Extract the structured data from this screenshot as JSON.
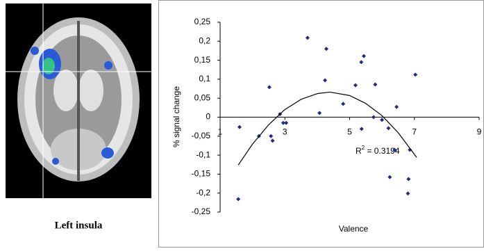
{
  "caption": "Left insula",
  "chart_data": {
    "type": "scatter",
    "x_label": "Valence",
    "y_label": "% signal change",
    "annotation": {
      "base": "R",
      "sup": "2",
      "text": " = 0.3194"
    },
    "xlim": [
      1,
      9
    ],
    "xticks": [
      1,
      3,
      5,
      7,
      9
    ],
    "ylim": [
      -0.25,
      0.25
    ],
    "yticks": [
      {
        "value": 0.25,
        "label": "0,25"
      },
      {
        "value": 0.2,
        "label": "0,2"
      },
      {
        "value": 0.15,
        "label": "0,15"
      },
      {
        "value": 0.1,
        "label": "0,1"
      },
      {
        "value": 0.05,
        "label": "0,05"
      },
      0,
      {
        "value": -0.05,
        "label": "-0,05"
      },
      {
        "value": -0.1,
        "label": "-0,1"
      },
      {
        "value": -0.15,
        "label": "-0,15"
      },
      {
        "value": -0.2,
        "label": "-0,2"
      },
      {
        "value": -0.25,
        "label": "-0,25"
      }
    ],
    "color": "#1f2a8c",
    "x": [
      1.6,
      1.56,
      2.2,
      2.57,
      2.52,
      2.62,
      2.95,
      2.85,
      3.04,
      3.7,
      4.07,
      4.28,
      4.24,
      4.8,
      5.18,
      5.36,
      5.44,
      5.37,
      5.79,
      5.74,
      6.0,
      6.2,
      6.39,
      6.24,
      6.45,
      6.8,
      6.82,
      6.86,
      7.03
    ],
    "values": [
      -0.026,
      -0.216,
      -0.05,
      -0.05,
      0.079,
      -0.062,
      -0.015,
      0.008,
      -0.015,
      0.209,
      0.011,
      0.18,
      0.097,
      0.035,
      0.084,
      0.145,
      0.161,
      -0.031,
      0.086,
      0.0,
      -0.007,
      -0.029,
      -0.086,
      -0.158,
      0.027,
      -0.201,
      -0.163,
      -0.086,
      0.112
    ],
    "trendline": {
      "color": "#000000",
      "x": [
        1.56,
        2,
        2.5,
        3,
        3.5,
        4,
        4.39,
        5,
        5.5,
        6,
        6.5,
        7.07
      ],
      "values": [
        -0.126,
        -0.071,
        -0.02,
        0.02,
        0.047,
        0.062,
        0.066,
        0.057,
        0.036,
        0.004,
        -0.041,
        -0.106
      ]
    }
  }
}
